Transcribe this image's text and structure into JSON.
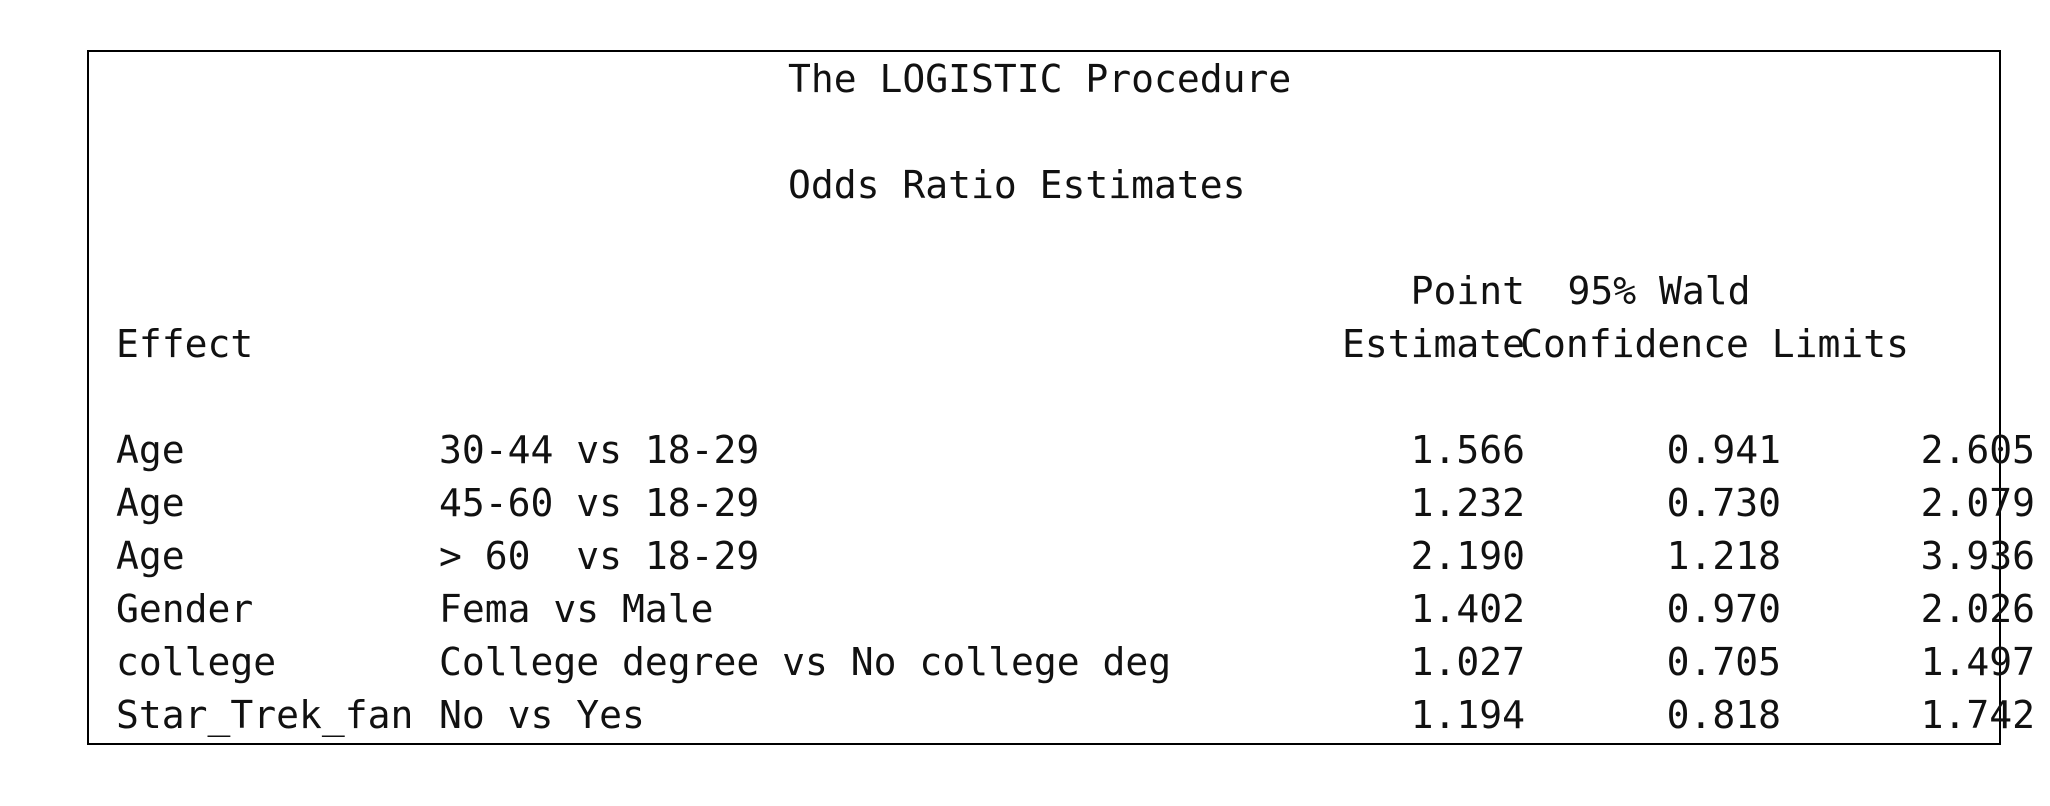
{
  "header": {
    "procedure_title": "The LOGISTIC Procedure",
    "table_title": "Odds Ratio Estimates"
  },
  "columns": {
    "effect": "Effect",
    "point_line1": "Point",
    "point_line2": "Estimate",
    "wald_line1": "95% Wald",
    "wald_line2": "Confidence Limits"
  },
  "rows": [
    {
      "effect": "Age",
      "comparison": "30-44 vs 18-29",
      "estimate": "1.566",
      "lower": "0.941",
      "upper": "2.605"
    },
    {
      "effect": "Age",
      "comparison": "45-60 vs 18-29",
      "estimate": "1.232",
      "lower": "0.730",
      "upper": "2.079"
    },
    {
      "effect": "Age",
      "comparison": "> 60  vs 18-29",
      "estimate": "2.190",
      "lower": "1.218",
      "upper": "3.936"
    },
    {
      "effect": "Gender",
      "comparison": "Fema vs Male",
      "estimate": "1.402",
      "lower": "0.970",
      "upper": "2.026"
    },
    {
      "effect": "college",
      "comparison": "College degree vs No college deg",
      "estimate": "1.027",
      "lower": "0.705",
      "upper": "1.497"
    },
    {
      "effect": "Star_Trek_fan",
      "comparison": "No vs Yes",
      "estimate": "1.194",
      "lower": "0.818",
      "upper": "1.742"
    }
  ]
}
